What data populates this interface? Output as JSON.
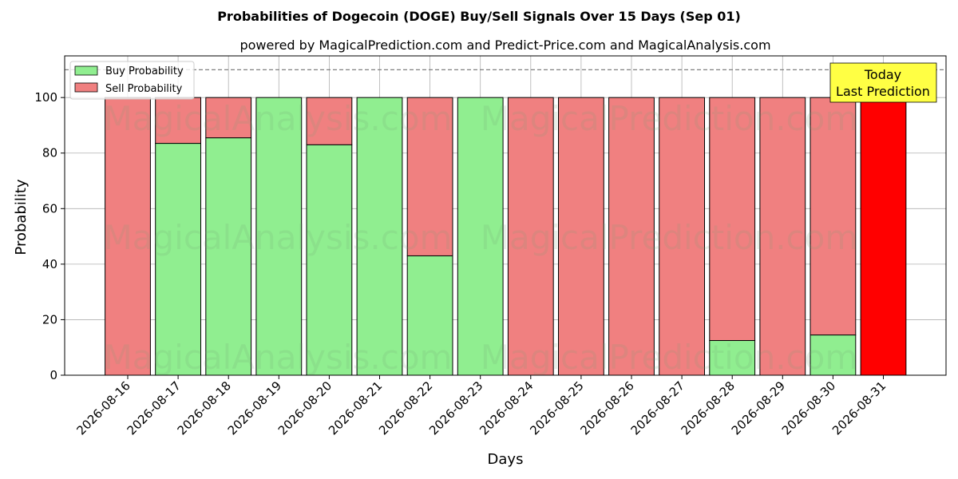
{
  "chart_data": {
    "type": "bar",
    "stacked": true,
    "title": "Probabilities of Dogecoin (DOGE) Buy/Sell Signals Over 15 Days (Sep 01)",
    "subtitle": "powered by MagicalPrediction.com and Predict-Price.com and MagicalAnalysis.com",
    "xlabel": "Days",
    "ylabel": "Probability",
    "ylim": [
      0,
      115
    ],
    "yticks": [
      0,
      20,
      40,
      60,
      80,
      100
    ],
    "reference_line": 110,
    "grid": true,
    "legend_position": "top-left",
    "categories": [
      "2026-08-16",
      "2026-08-17",
      "2026-08-18",
      "2026-08-19",
      "2026-08-20",
      "2026-08-21",
      "2026-08-22",
      "2026-08-23",
      "2026-08-24",
      "2026-08-25",
      "2026-08-26",
      "2026-08-27",
      "2026-08-28",
      "2026-08-29",
      "2026-08-30",
      "2026-08-31"
    ],
    "series": [
      {
        "name": "Buy Probability",
        "color": "#90ee90",
        "values": [
          0,
          83.5,
          85.5,
          100,
          83,
          100,
          43,
          100,
          0,
          0,
          0,
          0,
          12.5,
          0,
          14.5,
          0
        ]
      },
      {
        "name": "Sell Probability",
        "color": "#f08080",
        "values": [
          100,
          16.5,
          14.5,
          0,
          17,
          0,
          57,
          0,
          100,
          100,
          100,
          100,
          87.5,
          100,
          85.5,
          0
        ]
      }
    ],
    "highlight": {
      "category": "2026-08-31",
      "value": 100,
      "color": "#ff0000"
    },
    "annotation": {
      "line1": "Today",
      "line2": "Last Prediction",
      "color": "#ffff44"
    },
    "watermarks": [
      "MagicalAnalysis.com",
      "MagicalPrediction.com"
    ]
  }
}
